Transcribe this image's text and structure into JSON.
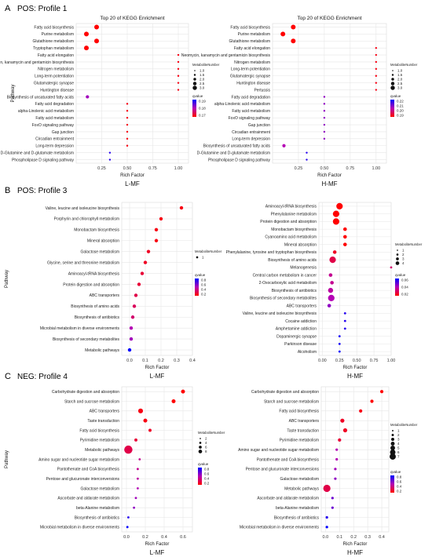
{
  "figure": {
    "section_labels": [
      "A",
      "B",
      "C"
    ],
    "section_titles": [
      "POS: Profile 1",
      "POS: Profile 3",
      "NEG: Profile 4"
    ],
    "colors": {
      "high": "#ff0000",
      "mid": "#b400b4",
      "low": "#0000ff",
      "grid": "#e6e6e6",
      "panel_border": "#d9d9d9"
    }
  },
  "chart_data": [
    {
      "type": "scatter",
      "title": "Top 20 of KEGG Enrichment",
      "xlabel": "Rich Factor",
      "ylabel": "Pathway",
      "panel_label": "L-MF",
      "xlim": [
        0,
        1.1
      ],
      "x_ticks": [
        "0.25",
        "0.50",
        "0.75",
        "1.00"
      ],
      "x_tick_values": [
        0.25,
        0.5,
        0.75,
        1.0
      ],
      "size_legend_title": "MetaboliteNumber",
      "size_legend_values": [
        "1.0",
        "1.5",
        "2.0",
        "2.5",
        "3.0"
      ],
      "color_legend_title": "qvalue",
      "color_legend_ticks": [
        "0.19",
        "0.18",
        "0.17"
      ],
      "categories": [
        "Fatty acid biosynthesis",
        "Purine metabolism",
        "Glutathione metabolism",
        "Tryptophan metabolism",
        "Fatty acid elongation",
        "Neomycin, kanamycin and gentamicin biosynthesis",
        "Nitrogen metabolism",
        "Long-term potentiation",
        "Glutamatergic synapse",
        "Huntington disease",
        "Biosynthesis of unsaturated fatty acids",
        "Fatty acid degradation",
        "alpha-Linolenic acid metabolism",
        "Fatty acid metabolism",
        "FoxO signaling pathway",
        "Gap junction",
        "Circadian entrainment",
        "Long-term depression",
        "D-Glutamine and D-glutamate metabolism",
        "Phospholipase D signaling pathway"
      ],
      "x": [
        0.2,
        0.1,
        0.2,
        0.1,
        1.0,
        1.0,
        1.0,
        1.0,
        1.0,
        1.0,
        0.11,
        0.5,
        0.5,
        0.5,
        0.5,
        0.5,
        0.5,
        0.5,
        0.33,
        0.33
      ],
      "size": [
        3,
        3,
        3,
        3,
        1,
        1,
        1,
        1,
        1,
        1,
        2,
        1,
        1,
        1,
        1,
        1,
        1,
        1,
        1,
        1
      ],
      "color": [
        0.0,
        0.0,
        0.0,
        0.0,
        0.05,
        0.05,
        0.05,
        0.05,
        0.05,
        0.05,
        0.55,
        0.05,
        0.05,
        0.05,
        0.05,
        0.05,
        0.05,
        0.05,
        0.9,
        0.9
      ]
    },
    {
      "type": "scatter",
      "title": "Top 20 of KEGG Enrichment",
      "xlabel": "Rich Factor",
      "ylabel": "",
      "panel_label": "H-MF",
      "xlim": [
        0,
        1.1
      ],
      "x_ticks": [
        "0.25",
        "0.50",
        "0.75",
        "1.00"
      ],
      "x_tick_values": [
        0.25,
        0.5,
        0.75,
        1.0
      ],
      "size_legend_title": "MetaboliteNumber",
      "size_legend_values": [
        "1.0",
        "1.5",
        "2.0",
        "2.5",
        "3.0"
      ],
      "color_legend_title": "qvalue",
      "color_legend_ticks": [
        "0.22",
        "0.21",
        "0.20",
        "0.19"
      ],
      "categories": [
        "Fatty acid biosynthesis",
        "Purine metabolism",
        "Glutathione metabolism",
        "Fatty acid elongation",
        "Neomycin, kanamycin and gentamicin biosynthesis",
        "Nitrogen metabolism",
        "Long-term potentiation",
        "Glutamatergic synapse",
        "Huntington disease",
        "Pertussis",
        "Fatty acid degradation",
        "alpha-Linolenic acid metabolism",
        "Fatty acid metabolism",
        "FoxO signaling pathway",
        "Gap junction",
        "Circadian entrainment",
        "Long-term depression",
        "Biosynthesis of unsaturated fatty acids",
        "D-Glutamine and D-glutamate metabolism",
        "Phospholipase D signaling pathway"
      ],
      "x": [
        0.2,
        0.1,
        0.2,
        1.0,
        1.0,
        1.0,
        1.0,
        1.0,
        1.0,
        1.0,
        0.5,
        0.5,
        0.5,
        0.5,
        0.5,
        0.5,
        0.5,
        0.11,
        0.33,
        0.33
      ],
      "size": [
        3,
        3,
        3,
        1,
        1,
        1,
        1,
        1,
        1,
        1,
        1,
        1,
        1,
        1,
        1,
        1,
        1,
        2,
        1,
        1
      ],
      "color": [
        0.0,
        0.0,
        0.0,
        0.05,
        0.05,
        0.05,
        0.05,
        0.05,
        0.05,
        0.05,
        0.6,
        0.6,
        0.6,
        0.6,
        0.6,
        0.6,
        0.6,
        0.5,
        0.9,
        0.9
      ]
    },
    {
      "type": "scatter",
      "title": "",
      "xlabel": "Rich Factor",
      "ylabel": "Pathway",
      "panel_label": "L-MF",
      "xlim": [
        -0.05,
        0.4
      ],
      "x_ticks": [
        "0.0",
        "0.1",
        "0.2",
        "0.3",
        "0.4"
      ],
      "x_tick_values": [
        0.0,
        0.1,
        0.2,
        0.3,
        0.4
      ],
      "size_legend_title": "MetaboliteNumber",
      "size_legend_values": [
        "1"
      ],
      "color_legend_title": "qvalue",
      "color_legend_ticks": [
        "0.8",
        "0.6",
        "0.4",
        "0.2"
      ],
      "categories": [
        "Valine, leucine and isoleucine biosynthesis",
        "Porphyrin and chlorophyll metabolism",
        "Monobactam biosynthesis",
        "Mineral absorption",
        "Galactose metabolism",
        "Glycine, serine and threonine metabolism",
        "Aminoacyl-tRNA biosynthesis",
        "Protein digestion and absorption",
        "ABC transporters",
        "Biosynthesis of amino acids",
        "Biosynthesis of antibiotics",
        "Microbial metabolism in diverse environments",
        "Biosynthesis of secondary metabolites",
        "Metabolic pathways"
      ],
      "x": [
        0.33,
        0.2,
        0.17,
        0.17,
        0.12,
        0.1,
        0.08,
        0.06,
        0.04,
        0.03,
        0.02,
        0.01,
        0.01,
        0.0
      ],
      "size": [
        1,
        1,
        1,
        1,
        1,
        1,
        1,
        1,
        1,
        1,
        1,
        1,
        1,
        1
      ],
      "color": [
        0.05,
        0.05,
        0.05,
        0.05,
        0.1,
        0.1,
        0.15,
        0.15,
        0.2,
        0.25,
        0.3,
        0.5,
        0.55,
        1.0
      ]
    },
    {
      "type": "scatter",
      "title": "",
      "xlabel": "Rich Factor",
      "ylabel": "",
      "panel_label": "H-MF",
      "xlim": [
        -0.05,
        1.0
      ],
      "x_ticks": [
        "0.00",
        "0.25",
        "0.50",
        "0.75",
        "1.00"
      ],
      "x_tick_values": [
        0.0,
        0.25,
        0.5,
        0.75,
        1.0
      ],
      "size_legend_title": "MetaboliteNumber",
      "size_legend_values": [
        "1",
        "2",
        "3",
        "4"
      ],
      "color_legend_title": "qvalue",
      "color_legend_ticks": [
        "0.06",
        "0.04",
        "0.02"
      ],
      "categories": [
        "Aminoacyl-tRNA biosynthesis",
        "Phenylalanine metabolism",
        "Protein digestion and absorption",
        "Monobactam biosynthesis",
        "Cyanoamino acid metabolism",
        "Mineral absorption",
        "Phenylalanine, tyrosine and tryptophan biosynthesis",
        "Biosynthesis of amino acids",
        "Melanogenesis",
        "Central carbon metabolism in cancer",
        "2-Oxocarboxylic acid metabolism",
        "Biosynthesis of antibiotics",
        "Biosynthesis of secondary metabolites",
        "ABC transporters",
        "Valine, leucine and isoleucine biosynthesis",
        "Cocaine addiction",
        "Amphetamine addiction",
        "Dopaminergic synapse",
        "Parkinson disease",
        "Alcoholism"
      ],
      "x": [
        0.25,
        0.2,
        0.2,
        0.33,
        0.33,
        0.33,
        0.18,
        0.15,
        1.0,
        0.12,
        0.14,
        0.12,
        0.13,
        0.1,
        0.33,
        0.33,
        0.33,
        0.25,
        0.25,
        0.25
      ],
      "size": [
        4,
        4,
        4,
        2,
        2,
        2,
        2,
        4,
        1,
        2,
        2,
        3,
        4,
        2,
        1,
        1,
        1,
        1,
        1,
        1
      ],
      "color": [
        0.0,
        0.0,
        0.0,
        0.0,
        0.0,
        0.0,
        0.1,
        0.2,
        0.3,
        0.4,
        0.4,
        0.45,
        0.5,
        0.6,
        0.9,
        0.9,
        0.9,
        0.95,
        0.95,
        1.0
      ]
    },
    {
      "type": "scatter",
      "title": "",
      "xlabel": "Rich Factor",
      "ylabel": "Pathway",
      "panel_label": "L-MF",
      "xlim": [
        -0.05,
        0.7
      ],
      "x_ticks": [
        "0.0",
        "0.2",
        "0.4",
        "0.6"
      ],
      "x_tick_values": [
        0.0,
        0.2,
        0.4,
        0.6
      ],
      "size_legend_title": "MetaboliteNumber",
      "size_legend_values": [
        "2",
        "4",
        "6",
        "8"
      ],
      "color_legend_title": "qvalue",
      "color_legend_ticks": [
        "0.8",
        "0.6",
        "0.4",
        "0.2"
      ],
      "categories": [
        "Carbohydrate digestion and absorption",
        "Starch and sucrose metabolism",
        "ABC transporters",
        "Taste transduction",
        "Fatty acid biosynthesis",
        "Pyrimidine metabolism",
        "Metabolic pathways",
        "Amino sugar and nucleotide sugar metabolism",
        "Pantothenate and CoA biosynthesis",
        "Pentose and glucuronate interconversions",
        "Galactose metabolism",
        "Ascorbate and aldarate metabolism",
        "beta-Alanine metabolism",
        "Biosynthesis of antibiotics",
        "Microbial metabolism in diverse environments"
      ],
      "x": [
        0.6,
        0.5,
        0.15,
        0.2,
        0.25,
        0.1,
        0.02,
        0.14,
        0.12,
        0.12,
        0.12,
        0.1,
        0.08,
        0.02,
        0.01
      ],
      "size": [
        3,
        3,
        4,
        3,
        2,
        2,
        8,
        1,
        1,
        1,
        1,
        1,
        1,
        1,
        1
      ],
      "color": [
        0.0,
        0.0,
        0.05,
        0.05,
        0.1,
        0.15,
        0.2,
        0.4,
        0.4,
        0.45,
        0.5,
        0.55,
        0.6,
        0.9,
        1.0
      ]
    },
    {
      "type": "scatter",
      "title": "",
      "xlabel": "Rich Factor",
      "ylabel": "",
      "panel_label": "H-MF",
      "xlim": [
        -0.03,
        0.45
      ],
      "x_ticks": [
        "0.0",
        "0.1",
        "0.2",
        "0.3",
        "0.4"
      ],
      "x_tick_values": [
        0.0,
        0.1,
        0.2,
        0.3,
        0.4
      ],
      "size_legend_title": "MetaboliteNumber",
      "size_legend_values": [
        "1",
        "2",
        "3",
        "4",
        "5",
        "6",
        "7"
      ],
      "color_legend_title": "qvalue",
      "color_legend_ticks": [
        "0.8",
        "0.6",
        "0.4",
        "0.2"
      ],
      "categories": [
        "Carbohydrate digestion and absorption",
        "Starch and sucrose metabolism",
        "Fatty acid biosynthesis",
        "ABC transporters",
        "Taste transduction",
        "Pyrimidine metabolism",
        "Amino sugar and nucleotide sugar metabolism",
        "Pantothenate and CoA biosynthesis",
        "Pentose and glucuronate interconversions",
        "Galactose metabolism",
        "Metabolic pathways",
        "Ascorbate and aldarate metabolism",
        "beta-Alanine metabolism",
        "Biosynthesis of antibiotics",
        "Microbial metabolism in diverse environments"
      ],
      "x": [
        0.4,
        0.33,
        0.25,
        0.12,
        0.14,
        0.1,
        0.08,
        0.08,
        0.07,
        0.07,
        0.01,
        0.05,
        0.05,
        0.01,
        0.01
      ],
      "size": [
        2,
        2,
        2,
        3,
        3,
        2,
        1,
        1,
        1,
        1,
        7,
        1,
        1,
        1,
        1
      ],
      "color": [
        0.0,
        0.0,
        0.05,
        0.1,
        0.1,
        0.15,
        0.5,
        0.5,
        0.55,
        0.6,
        0.2,
        0.7,
        0.7,
        0.9,
        1.0
      ]
    }
  ]
}
